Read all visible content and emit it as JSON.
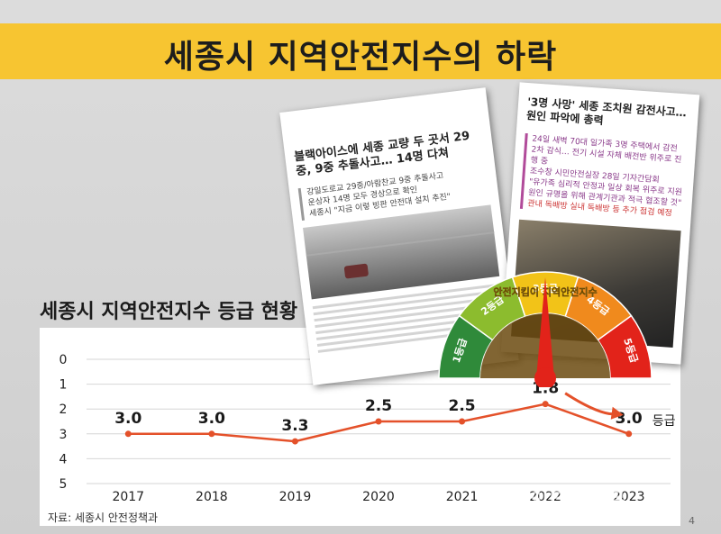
{
  "title": "세종시 지역안전지수의 하락",
  "chart_heading": "세종시 지역안전지수 등급 현황",
  "source": "자료: 세종시 안전정책과",
  "page_number": "4",
  "watermark": "대전인터넷신문",
  "colors": {
    "title_band": "#f7c531",
    "line": "#e4512a"
  },
  "article1": {
    "headline": "블랙아이스에 세종 교량 두 곳서 29중, 9중 추돌사고… 14명 다쳐",
    "subtext": [
      "강일도로교 29중/아람찬교 9중 추돌사고",
      "운상자 14명 모두 경상으로 확인",
      "세종시 \"지금 이렇 빙판 안전대 설치 추진\""
    ]
  },
  "article2": {
    "headline": "'3명 사망' 세종 조치원 감전사고… 원인 파악에 총력",
    "bullets": [
      "24일 새벽 70대 일가족 3명 주택에서 감전",
      "2차 감식… 전기 시설 자체 배전반 위주로 진행 중",
      "조수창 시민안전실장 28일 기자간담회",
      "\"유가족 심리적 안정과 일상 회복 위주로 지원",
      "원인 규명을 위해 관계기관과 적극 협조할 것\"",
      "관내 독배방 실내 독배방 등 추가 점검 예정"
    ]
  },
  "gauge": {
    "labels": [
      "1등급",
      "2등급",
      "3등급",
      "4등급",
      "5등급"
    ],
    "center_text": "안전지킴이 지역안전지수",
    "needle_grade": 3
  },
  "chart_data": {
    "type": "line",
    "title": "세종시 지역안전지수 등급 현황",
    "x": [
      "2017",
      "2018",
      "2019",
      "2020",
      "2021",
      "2022",
      "2023"
    ],
    "series": [
      {
        "values": [
          3.0,
          3.0,
          3.3,
          2.5,
          2.5,
          1.8,
          3.0
        ]
      }
    ],
    "data_labels": [
      "3.0",
      "3.0",
      "3.3",
      "2.5",
      "2.5",
      "1.8",
      "3.0"
    ],
    "unit_label": "등급",
    "y_ticks": [
      "0",
      "1",
      "2",
      "3",
      "4",
      "5"
    ],
    "ylim": [
      0,
      5
    ],
    "y_inverted": true,
    "grid": true,
    "line_color": "#e4512a"
  }
}
